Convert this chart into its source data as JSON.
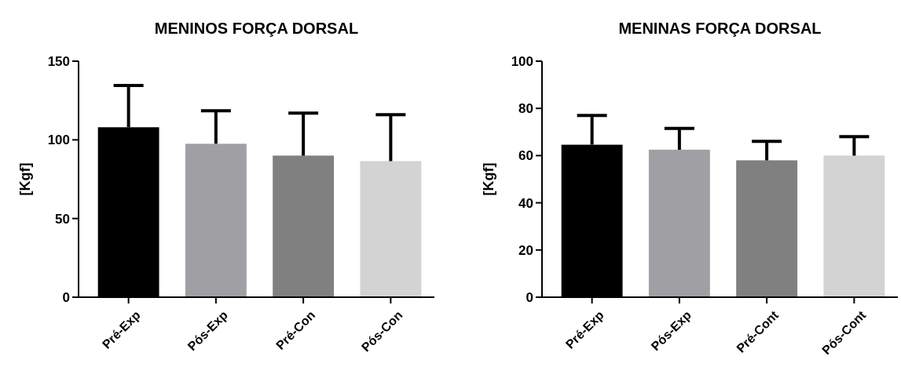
{
  "chart_data": [
    {
      "type": "bar",
      "title": "MENINOS FORÇA DORSAL",
      "ylabel": "[Kgf]",
      "categories": [
        "Pré-Exp",
        "Pós-Exp",
        "Pré-Con",
        "Pós-Con"
      ],
      "values": [
        108,
        97.5,
        90,
        86.5
      ],
      "colors": [
        "#000000",
        "#a0a0a4",
        "#808080",
        "#d3d3d3"
      ],
      "errors": [
        [
          108,
          134.5
        ],
        [
          97.5,
          118.5
        ],
        [
          90,
          117
        ],
        [
          86.5,
          116
        ]
      ],
      "ylim": [
        0,
        150
      ],
      "yticks": [
        0,
        50,
        100,
        150
      ],
      "grid": false
    },
    {
      "type": "bar",
      "title": "MENINAS FORÇA DORSAL",
      "ylabel": "[Kgf]",
      "categories": [
        "Pré-Exp",
        "Pós-Exp",
        "Pré-Cont",
        "Pós-Cont"
      ],
      "values": [
        64.6,
        62.5,
        58,
        60
      ],
      "colors": [
        "#000000",
        "#a0a0a4",
        "#808080",
        "#d3d3d3"
      ],
      "errors": [
        [
          64.6,
          77
        ],
        [
          62.5,
          71.5
        ],
        [
          58,
          66
        ],
        [
          60,
          68
        ]
      ],
      "ylim": [
        0,
        100
      ],
      "yticks": [
        0,
        20,
        40,
        60,
        80,
        100
      ],
      "grid": false
    }
  ]
}
